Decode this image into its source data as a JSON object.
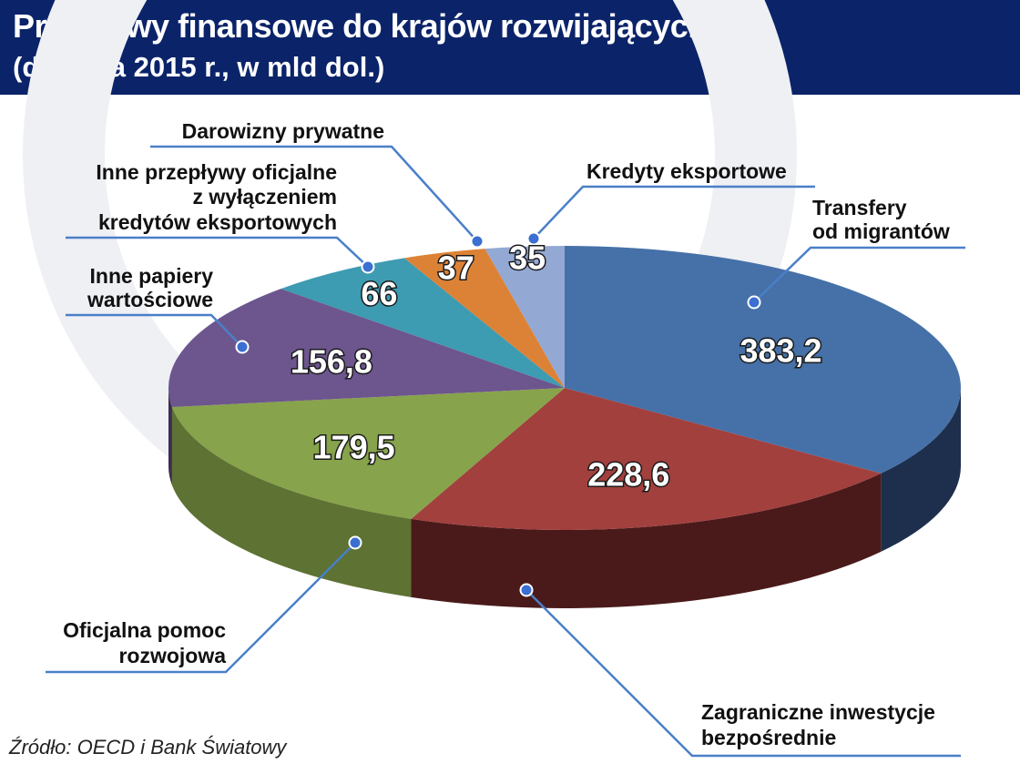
{
  "header": {
    "title": "Przepływy finansowe do krajów rozwijających się",
    "subtitle": "(dane za 2015 r., w mld dol.)"
  },
  "source": "Źródło: OECD i Bank Światowy",
  "colors": {
    "header_bg": "#0b2369",
    "callout_line": "#4a7fc8",
    "background_watermark": "#eef0f4"
  },
  "chart_data": {
    "type": "pie",
    "title": "Przepływy finansowe do krajów rozwijających się",
    "subtitle": "(dane za 2015 r., w mld dol.)",
    "unit": "mld dol.",
    "style": "3d",
    "slices": [
      {
        "label": "Transfery od migrantów",
        "label_lines": [
          "Transfery",
          "od migrantów"
        ],
        "value": 383.2,
        "value_text": "383,2",
        "color": "#4671a8",
        "side_color": "#1d2f4c"
      },
      {
        "label": "Zagraniczne inwestycje bezpośrednie",
        "label_lines": [
          "Zagraniczne inwestycje",
          "bezpośrednie"
        ],
        "value": 228.6,
        "value_text": "228,6",
        "color": "#a2403e",
        "side_color": "#4a1a1a"
      },
      {
        "label": "Oficjalna pomoc rozwojowa",
        "label_lines": [
          "Oficjalna pomoc",
          "rozwojowa"
        ],
        "value": 179.5,
        "value_text": "179,5",
        "color": "#87a34b",
        "side_color": "#5d7233"
      },
      {
        "label": "Inne papiery wartościowe",
        "label_lines": [
          "Inne papiery",
          "wartościowe"
        ],
        "value": 156.8,
        "value_text": "156,8",
        "color": "#6d558e",
        "side_color": "#3c2d51"
      },
      {
        "label": "Inne przepływy oficjalne z wyłączeniem kredytów eksportowych",
        "label_lines": [
          "Inne przepływy oficjalne",
          "z wyłączeniem",
          "kredytów eksportowych"
        ],
        "value": 66,
        "value_text": "66",
        "color": "#3d9bb2",
        "side_color": "#1f5a68"
      },
      {
        "label": "Darowizny prywatne",
        "label_lines": [
          "Darowizny prywatne"
        ],
        "value": 37,
        "value_text": "37",
        "color": "#dc8236",
        "side_color": "#8a4d1b"
      },
      {
        "label": "Kredyty eksportowe",
        "label_lines": [
          "Kredyty eksportowe"
        ],
        "value": 35,
        "value_text": "35",
        "color": "#93a9d4",
        "side_color": "#5a6d92"
      }
    ]
  }
}
